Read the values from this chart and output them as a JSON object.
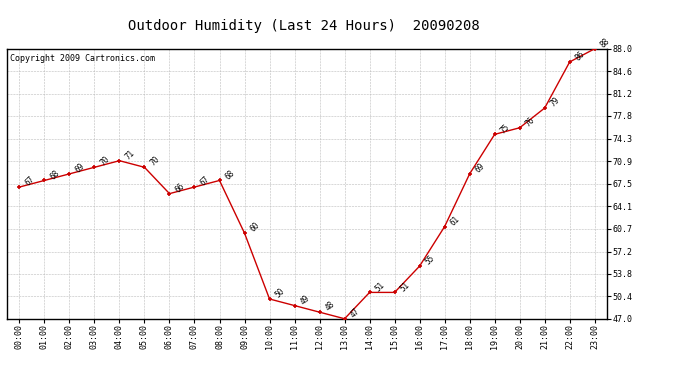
{
  "title": "Outdoor Humidity (Last 24 Hours)  20090208",
  "copyright": "Copyright 2009 Cartronics.com",
  "x_labels": [
    "00:00",
    "01:00",
    "02:00",
    "03:00",
    "04:00",
    "05:00",
    "06:00",
    "07:00",
    "08:00",
    "09:00",
    "10:00",
    "11:00",
    "12:00",
    "13:00",
    "14:00",
    "15:00",
    "16:00",
    "17:00",
    "18:00",
    "19:00",
    "20:00",
    "21:00",
    "22:00",
    "23:00"
  ],
  "hours": [
    0,
    1,
    2,
    3,
    4,
    5,
    6,
    7,
    8,
    9,
    10,
    11,
    12,
    13,
    14,
    15,
    16,
    17,
    18,
    19,
    20,
    21,
    22,
    23
  ],
  "values": [
    67,
    68,
    69,
    70,
    71,
    70,
    66,
    67,
    68,
    60,
    50,
    49,
    48,
    47,
    51,
    51,
    55,
    61,
    69,
    75,
    76,
    79,
    86,
    88
  ],
  "annotations": [
    "67",
    "68",
    "69",
    "70",
    "71",
    "70",
    "66",
    "67",
    "68",
    "60",
    "50",
    "49",
    "48",
    "47",
    "51",
    "51",
    "55",
    "61",
    "69",
    "75",
    "76",
    "79",
    "86",
    "88"
  ],
  "line_color": "#cc0000",
  "marker_color": "#cc0000",
  "bg_color": "#ffffff",
  "grid_color": "#bbbbbb",
  "yticks": [
    47.0,
    50.4,
    53.8,
    57.2,
    60.7,
    64.1,
    67.5,
    70.9,
    74.3,
    77.8,
    81.2,
    84.6,
    88.0
  ],
  "ymin": 47.0,
  "ymax": 88.0,
  "title_fontsize": 10,
  "annot_fontsize": 5.5,
  "copyright_fontsize": 6,
  "tick_fontsize": 6
}
